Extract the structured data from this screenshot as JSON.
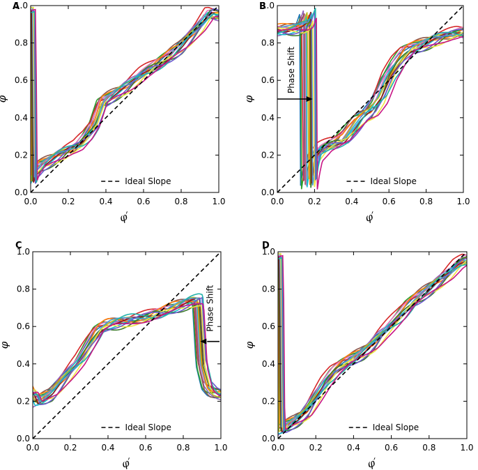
{
  "chart_data": [
    {
      "panel": "A",
      "type": "line",
      "xlabel": "φ′",
      "ylabel": "φ",
      "xlim": [
        0,
        1
      ],
      "ylim": [
        0,
        1
      ],
      "x_ticks": [
        "0.0",
        "0.2",
        "0.4",
        "0.6",
        "0.8",
        "1.0"
      ],
      "y_ticks": [
        "0.0",
        "0.2",
        "0.4",
        "0.6",
        "0.8",
        "1.0"
      ],
      "legend": {
        "label": "Ideal Slope",
        "position": "lower-right"
      },
      "annotation": null,
      "base_series": {
        "x": [
          0.0,
          0.005,
          0.02,
          0.05,
          0.1,
          0.15,
          0.2,
          0.25,
          0.3,
          0.34,
          0.36,
          0.38,
          0.42,
          0.5,
          0.6,
          0.7,
          0.8,
          0.9,
          0.95,
          0.97,
          1.0
        ],
        "y": [
          0.98,
          0.06,
          0.1,
          0.14,
          0.17,
          0.2,
          0.23,
          0.25,
          0.3,
          0.36,
          0.42,
          0.48,
          0.51,
          0.56,
          0.64,
          0.7,
          0.78,
          0.89,
          0.96,
          0.96,
          0.95
        ]
      }
    },
    {
      "panel": "B",
      "type": "line",
      "xlabel": "φ′",
      "ylabel": "φ",
      "xlim": [
        0,
        1
      ],
      "ylim": [
        0,
        1
      ],
      "x_ticks": [
        "0.0",
        "0.2",
        "0.4",
        "0.6",
        "0.8",
        "1.0"
      ],
      "y_ticks": [
        "0.0",
        "0.2",
        "0.4",
        "0.6",
        "0.8",
        "1.0"
      ],
      "legend": {
        "label": "Ideal Slope",
        "position": "lower-right"
      },
      "annotation": {
        "text": "Phase Shift",
        "x": 0.19,
        "y": 0.5
      },
      "base_series": {
        "x": [
          0.0,
          0.05,
          0.12,
          0.15,
          0.17,
          0.172,
          0.185,
          0.2,
          0.25,
          0.3,
          0.35,
          0.4,
          0.45,
          0.5,
          0.55,
          0.6,
          0.65,
          0.7,
          0.8,
          0.9,
          1.0
        ],
        "y": [
          0.87,
          0.87,
          0.88,
          0.9,
          0.96,
          0.03,
          0.12,
          0.19,
          0.24,
          0.26,
          0.28,
          0.34,
          0.4,
          0.43,
          0.5,
          0.62,
          0.7,
          0.76,
          0.8,
          0.84,
          0.86
        ]
      }
    },
    {
      "panel": "C",
      "type": "line",
      "xlabel": "φ′",
      "ylabel": "φ",
      "xlim": [
        0,
        1
      ],
      "ylim": [
        0,
        1
      ],
      "x_ticks": [
        "0.0",
        "0.2",
        "0.4",
        "0.6",
        "0.8",
        "1.0"
      ],
      "y_ticks": [
        "0.0",
        "0.2",
        "0.4",
        "0.6",
        "0.8",
        "1.0"
      ],
      "legend": {
        "label": "Ideal Slope",
        "position": "lower-center"
      },
      "annotation": {
        "text": "Phase Shift",
        "x": 0.89,
        "y": 0.52
      },
      "base_series": {
        "x": [
          0.0,
          0.02,
          0.05,
          0.1,
          0.15,
          0.2,
          0.25,
          0.3,
          0.35,
          0.38,
          0.4,
          0.45,
          0.5,
          0.6,
          0.7,
          0.8,
          0.86,
          0.88,
          0.9,
          0.93,
          0.96,
          1.0
        ],
        "y": [
          0.25,
          0.2,
          0.21,
          0.24,
          0.3,
          0.36,
          0.42,
          0.5,
          0.58,
          0.6,
          0.61,
          0.62,
          0.63,
          0.65,
          0.68,
          0.72,
          0.74,
          0.74,
          0.4,
          0.28,
          0.25,
          0.24
        ]
      }
    },
    {
      "panel": "D",
      "type": "line",
      "xlabel": "φ′",
      "ylabel": "φ",
      "xlim": [
        0,
        1
      ],
      "ylim": [
        0,
        1
      ],
      "x_ticks": [
        "0.0",
        "0.2",
        "0.4",
        "0.6",
        "0.8",
        "1.0"
      ],
      "y_ticks": [
        "0.0",
        "0.2",
        "0.4",
        "0.6",
        "0.8",
        "1.0"
      ],
      "legend": {
        "label": "Ideal Slope",
        "position": "lower-right"
      },
      "annotation": null,
      "base_series": {
        "x": [
          0.0,
          0.008,
          0.02,
          0.05,
          0.1,
          0.15,
          0.2,
          0.25,
          0.3,
          0.35,
          0.4,
          0.45,
          0.5,
          0.55,
          0.6,
          0.65,
          0.7,
          0.8,
          0.9,
          0.95,
          1.0
        ],
        "y": [
          0.98,
          0.05,
          0.05,
          0.07,
          0.1,
          0.14,
          0.22,
          0.3,
          0.36,
          0.4,
          0.43,
          0.46,
          0.5,
          0.56,
          0.61,
          0.66,
          0.72,
          0.8,
          0.88,
          0.93,
          0.96
        ]
      }
    }
  ],
  "series_colors": [
    "#1f77b4",
    "#2ca02c",
    "#d62728",
    "#9467bd",
    "#8c564b",
    "#e377c2",
    "#17becf",
    "#bcbd22",
    "#ff7f0e",
    "#3c7a2c",
    "#8a1c1c",
    "#4a9fd6",
    "#f0e442",
    "#6a5acd",
    "#20b2aa",
    "#c71585"
  ],
  "ideal_color": "#000000"
}
